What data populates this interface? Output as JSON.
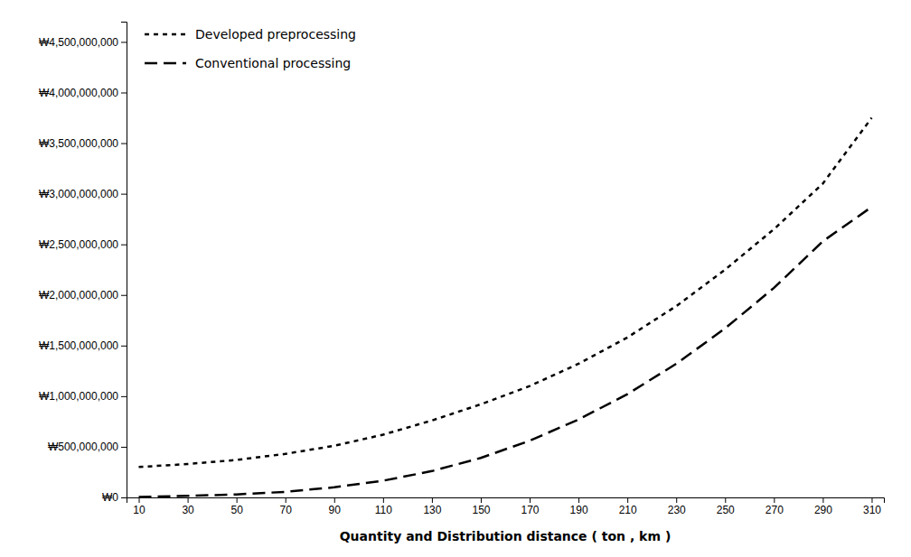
{
  "chart_data": {
    "type": "line",
    "x_label": "Quantity and Distribution distance ( ton , km )",
    "x": [
      10,
      30,
      50,
      70,
      90,
      110,
      130,
      150,
      170,
      190,
      210,
      230,
      250,
      270,
      290,
      310
    ],
    "series": [
      {
        "name": "Developed preprocessing",
        "color": "#000000",
        "line_style": "dashed",
        "values": [
          300000000,
          330000000,
          370000000,
          430000000,
          510000000,
          620000000,
          760000000,
          920000000,
          1100000000,
          1320000000,
          1580000000,
          1890000000,
          2250000000,
          2650000000,
          3100000000,
          3750000000
        ]
      },
      {
        "name": "Conventional processing",
        "color": "#000000",
        "line_style": "longdash",
        "values": [
          5000000,
          15000000,
          30000000,
          55000000,
          100000000,
          165000000,
          260000000,
          390000000,
          560000000,
          770000000,
          1020000000,
          1320000000,
          1670000000,
          2070000000,
          2530000000,
          2870000000
        ]
      }
    ],
    "xlim": [
      5,
      315
    ],
    "xticks": [
      10,
      30,
      50,
      70,
      90,
      110,
      130,
      150,
      170,
      190,
      210,
      230,
      250,
      270,
      290,
      310
    ],
    "ylim": [
      0,
      4700000000
    ],
    "yticks": [
      {
        "value": 0,
        "label": "₩0"
      },
      {
        "value": 500000000,
        "label": "₩500,000,000"
      },
      {
        "value": 1000000000,
        "label": "₩1,000,000,000"
      },
      {
        "value": 1500000000,
        "label": "₩1,500,000,000"
      },
      {
        "value": 2000000000,
        "label": "₩2,000,000,000"
      },
      {
        "value": 2500000000,
        "label": "₩2,500,000,000"
      },
      {
        "value": 3000000000,
        "label": "₩3,000,000,000"
      },
      {
        "value": 3500000000,
        "label": "₩3,500,000,000"
      },
      {
        "value": 4000000000,
        "label": "₩4,000,000,000"
      },
      {
        "value": 4500000000,
        "label": "₩4,500,000,000"
      }
    ],
    "grid": false,
    "legend": "upper left"
  }
}
